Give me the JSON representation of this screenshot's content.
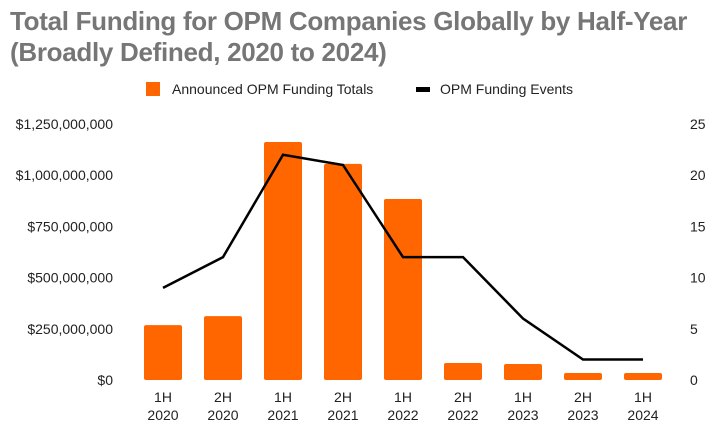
{
  "chart_data": {
    "type": "bar",
    "title_line1": "Total Funding for OPM Companies Globally by Half-Year",
    "title_line2": "(Broadly Defined, 2020 to 2024)",
    "categories": [
      [
        "1H",
        "2020"
      ],
      [
        "2H",
        "2020"
      ],
      [
        "1H",
        "2021"
      ],
      [
        "2H",
        "2021"
      ],
      [
        "1H",
        "2022"
      ],
      [
        "2H",
        "2022"
      ],
      [
        "1H",
        "2023"
      ],
      [
        "2H",
        "2023"
      ],
      [
        "1H",
        "2024"
      ]
    ],
    "series": [
      {
        "name": "Announced OPM Funding Totals",
        "type": "bar",
        "axis": "left",
        "color": "#ff6600",
        "values": [
          268000000,
          312000000,
          1162000000,
          1055000000,
          884000000,
          83000000,
          78000000,
          34000000,
          34000000
        ]
      },
      {
        "name": "OPM Funding Events",
        "type": "line",
        "axis": "right",
        "color": "#000000",
        "values": [
          9,
          12,
          22,
          21,
          12,
          12,
          6,
          2,
          2
        ]
      }
    ],
    "left_axis": {
      "ylim": [
        0,
        1250000000
      ],
      "ticks": [
        0,
        250000000,
        500000000,
        750000000,
        1000000000,
        1250000000
      ],
      "tick_labels": [
        "$0",
        "$250,000,000",
        "$500,000,000",
        "$750,000,000",
        "$1,000,000,000",
        "$1,250,000,000"
      ]
    },
    "right_axis": {
      "ylim": [
        0,
        25
      ],
      "ticks": [
        0,
        5,
        10,
        15,
        20,
        25
      ],
      "tick_labels": [
        "0",
        "5",
        "10",
        "15",
        "20",
        "25"
      ]
    },
    "legend_position": "top-center",
    "grid": false
  }
}
